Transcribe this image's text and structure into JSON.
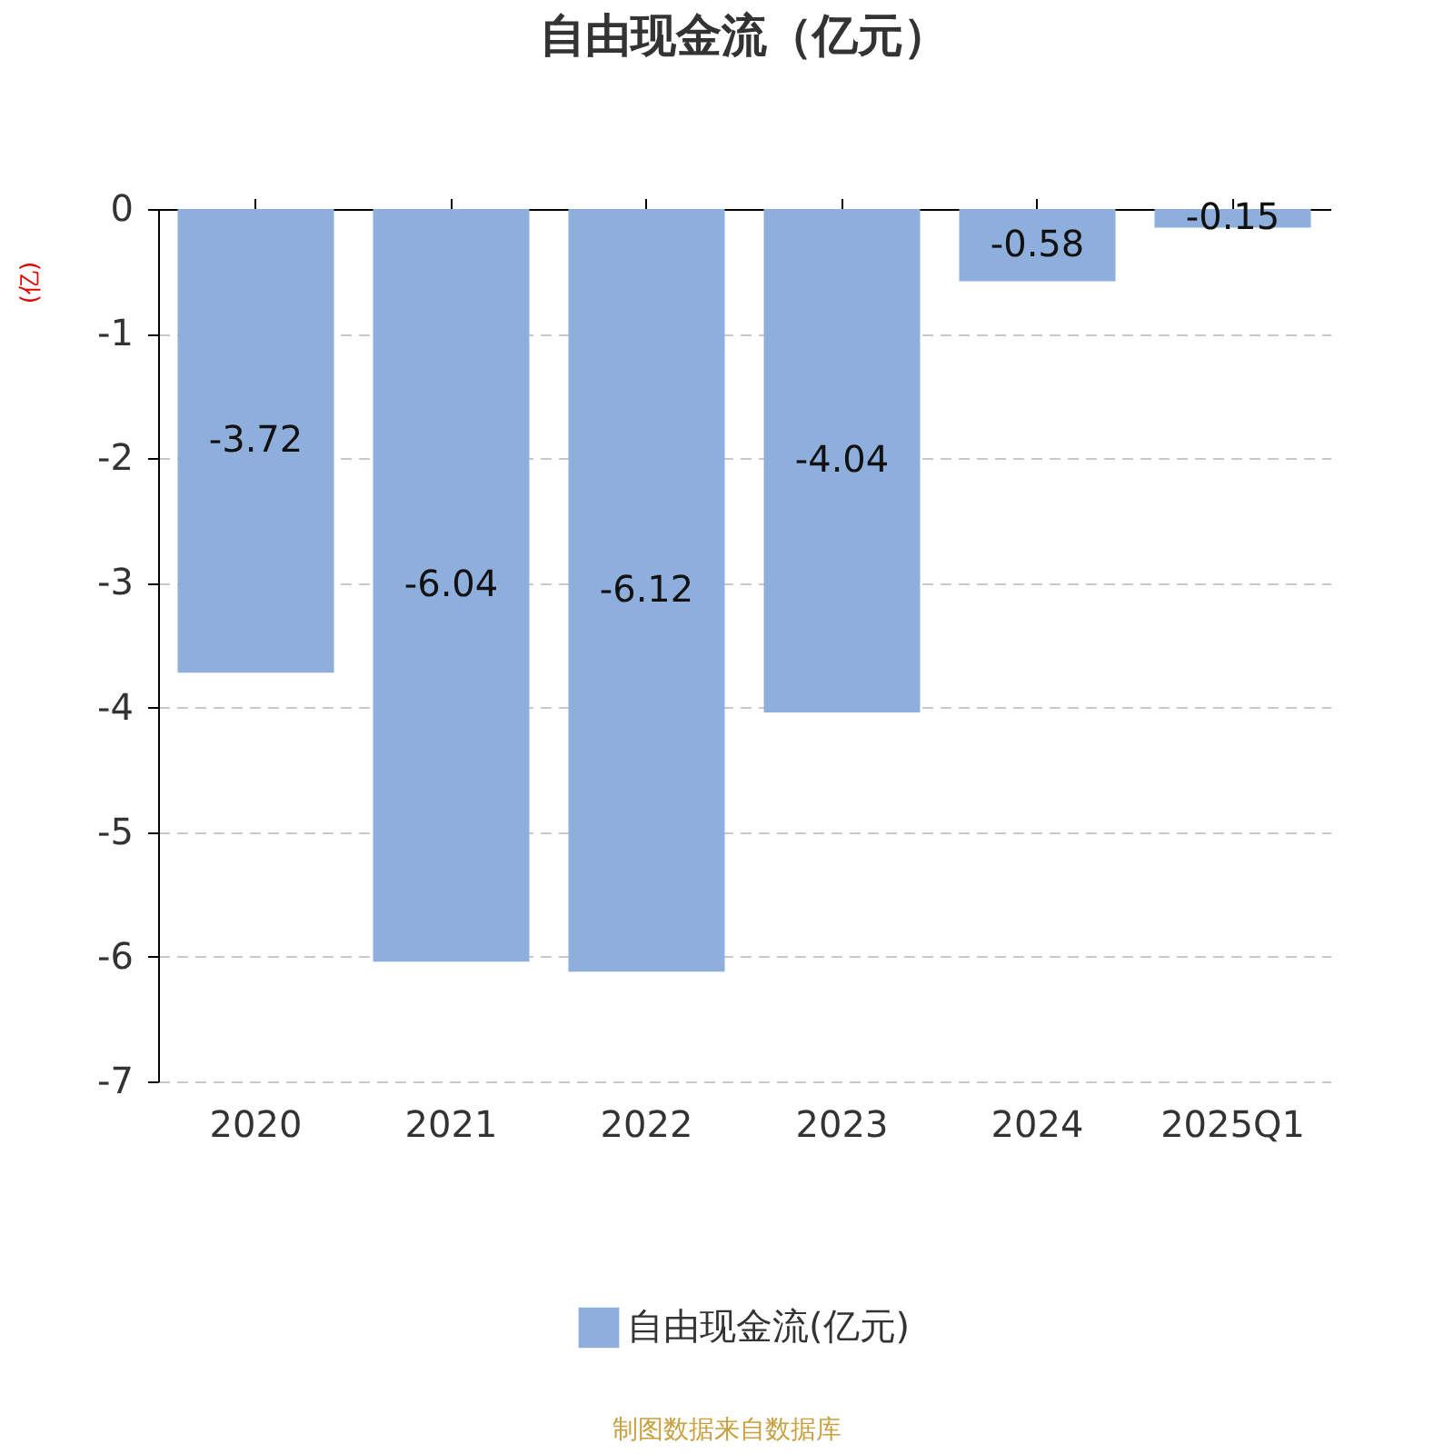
{
  "chart_data": {
    "type": "bar",
    "title": "自由现金流（亿元）",
    "ylabel": "(亿)",
    "categories": [
      "2020",
      "2021",
      "2022",
      "2023",
      "2024",
      "2025Q1"
    ],
    "series": [
      {
        "name": "自由现金流(亿元)",
        "color": "#8eaedb",
        "values": [
          -3.72,
          -6.04,
          -6.12,
          -4.04,
          -0.58,
          -0.15
        ]
      }
    ],
    "ylim": [
      -7,
      0
    ],
    "yticks": [
      -7,
      -6,
      -5,
      -4,
      -3,
      -2,
      -1,
      0
    ],
    "grid": "y",
    "data_labels": true,
    "legend": "bottom",
    "annotations": [
      "制图数据来自数据库"
    ]
  }
}
